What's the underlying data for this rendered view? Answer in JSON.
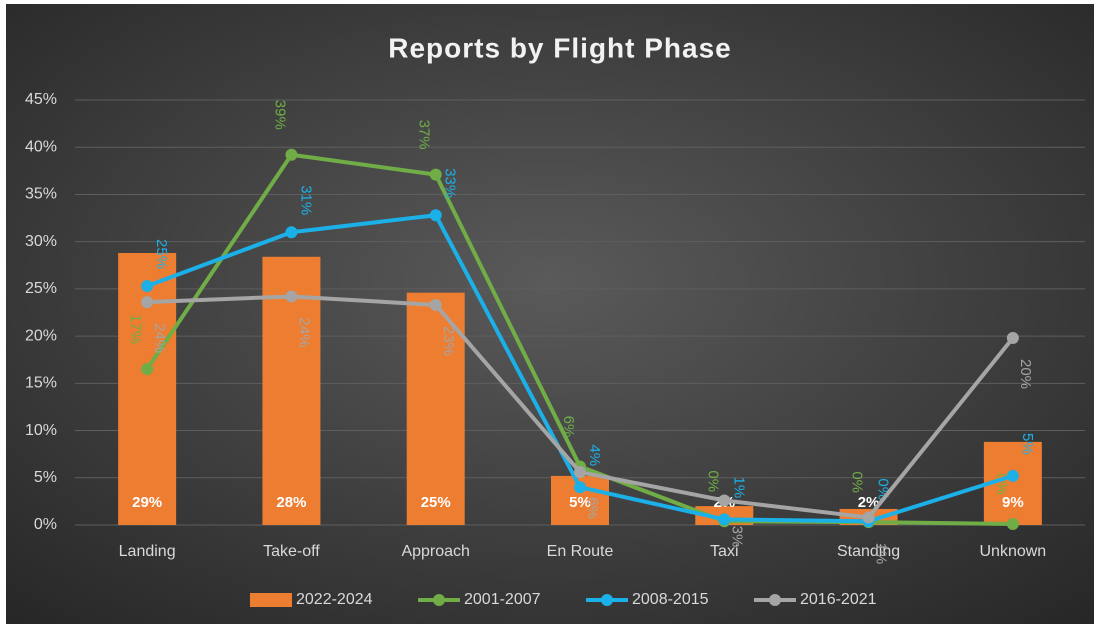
{
  "chart_data": {
    "type": "combo",
    "title": "Reports by Flight Phase",
    "categories": [
      "Landing",
      "Take-off",
      "Approach",
      "En Route",
      "Taxi",
      "Standing",
      "Unknown"
    ],
    "series": [
      {
        "name": "2022-2024",
        "type": "bar",
        "color": "#ed7d31",
        "values": [
          28.8,
          28.4,
          24.6,
          5.2,
          2.0,
          1.7,
          8.8
        ],
        "value_labels": [
          "29%",
          "28%",
          "25%",
          "5%",
          "2%",
          "2%",
          "9%"
        ]
      },
      {
        "name": "2001-2007",
        "type": "line",
        "color": "#70ad47",
        "values": [
          16.5,
          39.2,
          37.1,
          6.2,
          0.4,
          0.3,
          0.1
        ],
        "value_labels": [
          "17%",
          "39%",
          "37%",
          "6%",
          "0%",
          "0%",
          "0%"
        ]
      },
      {
        "name": "2008-2015",
        "type": "line",
        "color": "#1cb0e8",
        "values": [
          25.3,
          31.0,
          32.8,
          4.0,
          0.6,
          0.4,
          5.2
        ],
        "value_labels": [
          "25%",
          "31%",
          "33%",
          "4%",
          "1%",
          "0%",
          "5%"
        ]
      },
      {
        "name": "2016-2021",
        "type": "line",
        "color": "#a5a5a5",
        "values": [
          23.6,
          24.2,
          23.3,
          5.6,
          2.6,
          0.8,
          19.8
        ],
        "value_labels": [
          "24%",
          "24%",
          "23%",
          "6%",
          "3%",
          "1%",
          "20%"
        ]
      }
    ],
    "ylim": [
      0,
      45
    ],
    "yticks": [
      {
        "value": 0,
        "label": "0%"
      },
      {
        "value": 5,
        "label": "5%"
      },
      {
        "value": 10,
        "label": "10%"
      },
      {
        "value": 15,
        "label": "15%"
      },
      {
        "value": 20,
        "label": "20%"
      },
      {
        "value": 25,
        "label": "25%"
      },
      {
        "value": 30,
        "label": "30%"
      },
      {
        "value": 35,
        "label": "35%"
      },
      {
        "value": 40,
        "label": "40%"
      },
      {
        "value": 45,
        "label": "45%"
      }
    ],
    "grid": true,
    "legend": "bottom"
  }
}
